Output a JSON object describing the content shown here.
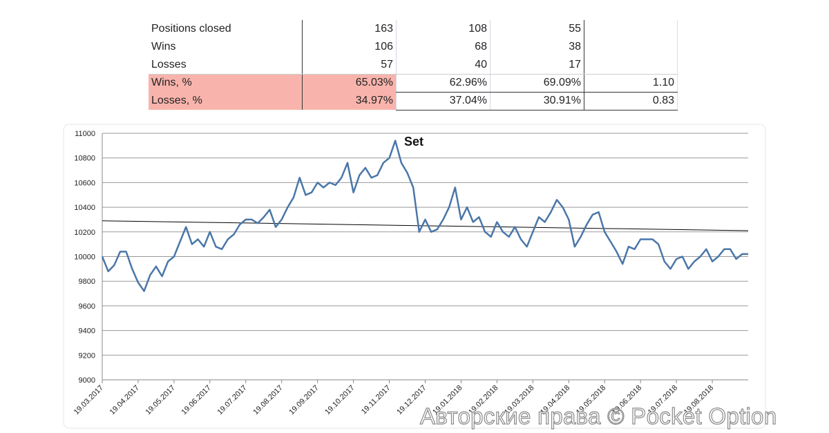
{
  "table": {
    "rows": [
      [
        "Positions closed",
        "163",
        "108",
        "55"
      ],
      [
        "Wins",
        "106",
        "68",
        "38"
      ],
      [
        "Losses",
        "57",
        "40",
        "17"
      ],
      [
        "Wins, %",
        "65.03%",
        "62.96%",
        "69.09%",
        "1.10"
      ],
      [
        "Losses, %",
        "34.97%",
        "37.04%",
        "30.91%",
        "0.83"
      ]
    ]
  },
  "chart_data": {
    "type": "line",
    "annotation": "Set",
    "categories": [
      "19.03.2017",
      null,
      null,
      null,
      null,
      null,
      "19.04.2017",
      null,
      null,
      null,
      null,
      null,
      "19.05.2017",
      null,
      null,
      null,
      null,
      null,
      "19.06.2017",
      null,
      null,
      null,
      null,
      null,
      "19.07.2017",
      null,
      null,
      null,
      null,
      null,
      "19.08.2017",
      null,
      null,
      null,
      null,
      null,
      "19.09.2017",
      null,
      null,
      null,
      null,
      null,
      "19.10.2017",
      null,
      null,
      null,
      null,
      null,
      "19.11.2017",
      null,
      null,
      null,
      null,
      null,
      "19.12.2017",
      null,
      null,
      null,
      null,
      null,
      "19.01.2018",
      null,
      null,
      null,
      null,
      null,
      "19.02.2018",
      null,
      null,
      null,
      null,
      null,
      "19.03.2018",
      null,
      null,
      null,
      null,
      null,
      "19.04.2018",
      null,
      null,
      null,
      null,
      null,
      "19.05.2018",
      null,
      null,
      null,
      null,
      null,
      "19.06.2018",
      null,
      null,
      null,
      null,
      null,
      "19.07.2018",
      null,
      null,
      null,
      null,
      null,
      "19.08.2018",
      null,
      null,
      null,
      null,
      null,
      null
    ],
    "series": [
      {
        "color": "#4a76a8",
        "values": [
          10000,
          9880,
          9930,
          10040,
          10040,
          9900,
          9790,
          9720,
          9850,
          9920,
          9840,
          9960,
          10000,
          10120,
          10240,
          10100,
          10140,
          10080,
          10200,
          10080,
          10060,
          10140,
          10180,
          10260,
          10300,
          10300,
          10270,
          10320,
          10380,
          10240,
          10300,
          10400,
          10480,
          10640,
          10500,
          10520,
          10600,
          10560,
          10600,
          10580,
          10640,
          10760,
          10520,
          10660,
          10720,
          10640,
          10660,
          10760,
          10800,
          10940,
          10760,
          10680,
          10560,
          10200,
          10300,
          10200,
          10220,
          10300,
          10400,
          10560,
          10300,
          10400,
          10280,
          10320,
          10200,
          10160,
          10280,
          10200,
          10160,
          10240,
          10140,
          10080,
          10200,
          10320,
          10280,
          10360,
          10460,
          10400,
          10300,
          10080,
          10160,
          10260,
          10340,
          10360,
          10200,
          10120,
          10040,
          9940,
          10080,
          10060,
          10140,
          10140,
          10140,
          10100,
          9960,
          9900,
          9980,
          10000,
          9900,
          9960,
          10000,
          10060,
          9960,
          10000,
          10060,
          10060,
          9980,
          10020,
          10020
        ]
      }
    ],
    "trendline": {
      "color": "#000000",
      "values": [
        10290,
        10210
      ]
    },
    "ylim": [
      9000,
      11000
    ],
    "yticks": [
      9000,
      9200,
      9400,
      9600,
      9800,
      10000,
      10200,
      10400,
      10600,
      10800,
      11000
    ],
    "grid": true
  },
  "watermark": "Авторские права © Pocket Option"
}
